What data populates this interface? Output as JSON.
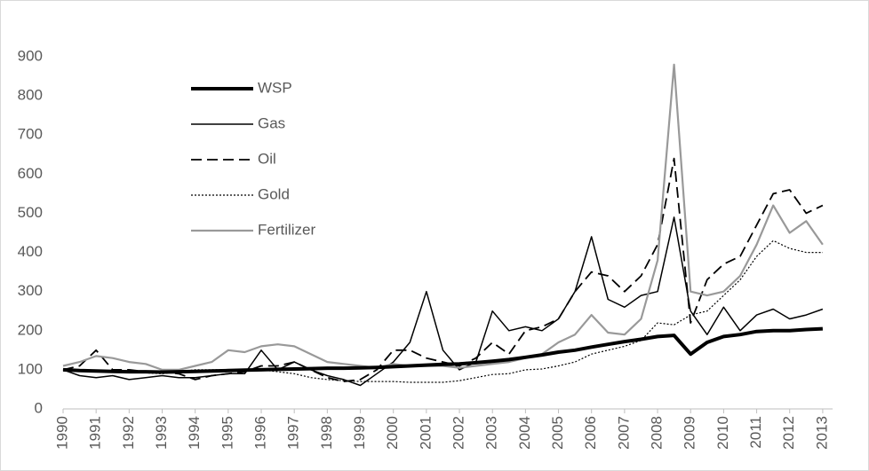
{
  "chart_data": {
    "type": "line",
    "x": [
      1990,
      1990.5,
      1991,
      1991.5,
      1992,
      1992.5,
      1993,
      1993.5,
      1994,
      1994.5,
      1995,
      1995.5,
      1996,
      1996.5,
      1997,
      1997.5,
      1998,
      1998.5,
      1999,
      1999.5,
      2000,
      2000.5,
      2001,
      2001.5,
      2002,
      2002.5,
      2003,
      2003.5,
      2004,
      2004.5,
      2005,
      2005.5,
      2006,
      2006.5,
      2007,
      2007.5,
      2008,
      2008.5,
      2009,
      2009.5,
      2010,
      2010.5,
      2011,
      2011.5,
      2012,
      2012.5,
      2013
    ],
    "xlim": [
      1990,
      2013.3
    ],
    "xticks": [
      1990,
      1991,
      1992,
      1993,
      1994,
      1995,
      1996,
      1997,
      1998,
      1999,
      2000,
      2001,
      2002,
      2003,
      2004,
      2005,
      2006,
      2007,
      2008,
      2009,
      2010,
      2011,
      2012,
      2013
    ],
    "ylim": [
      0,
      900
    ],
    "yticks": [
      0,
      100,
      200,
      300,
      400,
      500,
      600,
      700,
      800,
      900
    ],
    "grid": false,
    "legend": "upper-left",
    "series": [
      {
        "name": "WSP",
        "color": "#000000",
        "style": "solid",
        "line_width": 4,
        "values": [
          100,
          98,
          97,
          96,
          95,
          95,
          94,
          95,
          96,
          97,
          98,
          99,
          100,
          101,
          102,
          103,
          104,
          104,
          105,
          106,
          108,
          110,
          112,
          114,
          115,
          118,
          122,
          126,
          132,
          138,
          145,
          150,
          158,
          165,
          172,
          178,
          185,
          188,
          140,
          170,
          185,
          190,
          198,
          200,
          200,
          203,
          205
        ]
      },
      {
        "name": "Gas",
        "color": "#000000",
        "style": "solid",
        "line_width": 1.5,
        "values": [
          100,
          85,
          80,
          85,
          75,
          80,
          85,
          80,
          80,
          85,
          90,
          90,
          150,
          100,
          120,
          100,
          85,
          75,
          60,
          90,
          120,
          170,
          300,
          150,
          100,
          120,
          250,
          200,
          210,
          200,
          230,
          300,
          440,
          280,
          260,
          290,
          300,
          490,
          250,
          190,
          260,
          200,
          240,
          255,
          230,
          240,
          255
        ]
      },
      {
        "name": "Oil",
        "color": "#000000",
        "style": "dashed",
        "line_width": 1.8,
        "values": [
          100,
          110,
          150,
          100,
          100,
          95,
          95,
          90,
          75,
          85,
          90,
          95,
          110,
          110,
          120,
          100,
          80,
          70,
          75,
          100,
          150,
          150,
          130,
          120,
          110,
          130,
          170,
          140,
          200,
          210,
          230,
          300,
          350,
          340,
          300,
          340,
          420,
          640,
          220,
          330,
          370,
          390,
          470,
          550,
          560,
          500,
          520
        ]
      },
      {
        "name": "Gold",
        "color": "#000000",
        "style": "dotted",
        "line_width": 1.2,
        "values": [
          100,
          100,
          95,
          95,
          92,
          92,
          90,
          95,
          100,
          100,
          100,
          98,
          100,
          95,
          90,
          80,
          75,
          72,
          70,
          70,
          70,
          68,
          68,
          68,
          72,
          80,
          88,
          90,
          100,
          102,
          110,
          120,
          140,
          150,
          160,
          175,
          220,
          215,
          240,
          250,
          290,
          330,
          390,
          430,
          410,
          400,
          400
        ]
      },
      {
        "name": "Fertilizer",
        "color": "#999999",
        "style": "solid",
        "line_width": 2.2,
        "values": [
          110,
          120,
          135,
          130,
          120,
          115,
          100,
          100,
          110,
          120,
          150,
          145,
          160,
          165,
          160,
          140,
          120,
          115,
          110,
          105,
          115,
          110,
          110,
          110,
          105,
          110,
          115,
          120,
          130,
          140,
          170,
          190,
          240,
          195,
          190,
          230,
          380,
          880,
          300,
          290,
          300,
          340,
          420,
          520,
          450,
          480,
          420
        ]
      }
    ]
  }
}
